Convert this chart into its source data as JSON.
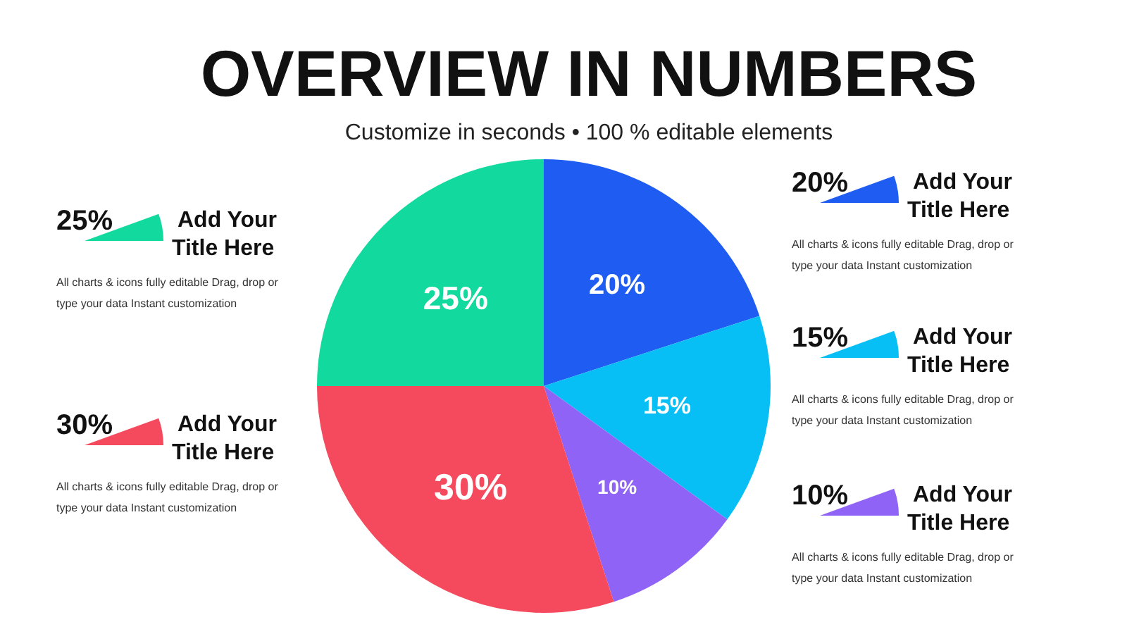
{
  "chart_data": {
    "type": "pie",
    "title": "OVERVIEW IN NUMBERS",
    "subtitle": "Customize in seconds • 100 % editable elements",
    "categories": [
      null,
      null,
      null,
      null,
      null
    ],
    "values": [
      20,
      15,
      10,
      30,
      25
    ],
    "colors": [
      "#1f5cf2",
      "#08bff5",
      "#8f63f5",
      "#f54a5e",
      "#12d99e"
    ],
    "value_labels": [
      "20%",
      "15%",
      "10%",
      "30%",
      "25%"
    ],
    "annotations": [
      "20%",
      "Add Your Title Here",
      "All charts & icons fully editable Drag, drop or type your data Instant customization",
      "15%",
      "Add Your Title Here",
      "All charts & icons fully editable Drag, drop or type your data Instant customization",
      "10%",
      "Add Your Title Here",
      "All charts & icons fully editable Drag, drop or type your data Instant customization",
      "30%",
      "Add Your Title Here",
      "All charts & icons fully editable Drag, drop or type your data Instant customization",
      "25%",
      "Add Your Title Here",
      "All charts & icons fully editable Drag, drop or type your data Instant customization"
    ]
  }
}
